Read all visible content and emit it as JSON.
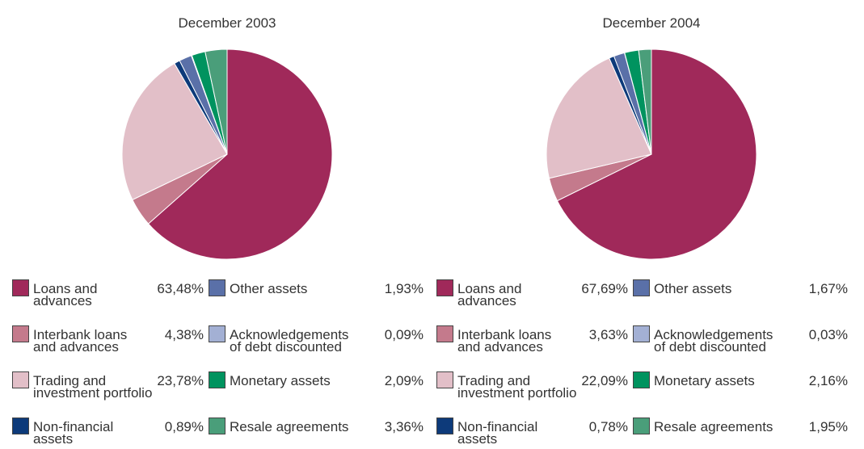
{
  "chart_data": [
    {
      "type": "pie",
      "title": "December 2003",
      "categories": [
        "Loans and\nadvances",
        "Interbank loans\nand advances",
        "Trading and\ninvestment portfolio",
        "Non-financial\nassets",
        "Other assets",
        "Acknowledgements\nof debt discounted",
        "Monetary assets",
        "Resale agreements"
      ],
      "values": [
        63.48,
        4.38,
        23.78,
        0.89,
        1.93,
        0.09,
        2.09,
        3.36
      ],
      "value_labels": [
        "63,48%",
        "4,38%",
        "23,78%",
        "0,89%",
        "1,93%",
        "0,09%",
        "2,09%",
        "3,36%"
      ],
      "colors": [
        "#a0295a",
        "#c47a8c",
        "#e2bfc8",
        "#0d3a7a",
        "#5a70a8",
        "#a3b0d4",
        "#00935f",
        "#4a9e7a"
      ]
    },
    {
      "type": "pie",
      "title": "December 2004",
      "categories": [
        "Loans and\nadvances",
        "Interbank loans\nand advances",
        "Trading and\ninvestment portfolio",
        "Non-financial\nassets",
        "Other assets",
        "Acknowledgements\nof debt discounted",
        "Monetary assets",
        "Resale agreements"
      ],
      "values": [
        67.69,
        3.63,
        22.09,
        0.78,
        1.67,
        0.03,
        2.16,
        1.95
      ],
      "value_labels": [
        "67,69%",
        "3,63%",
        "22,09%",
        "0,78%",
        "1,67%",
        "0,03%",
        "2,16%",
        "1,95%"
      ],
      "colors": [
        "#a0295a",
        "#c47a8c",
        "#e2bfc8",
        "#0d3a7a",
        "#5a70a8",
        "#a3b0d4",
        "#00935f",
        "#4a9e7a"
      ]
    }
  ]
}
